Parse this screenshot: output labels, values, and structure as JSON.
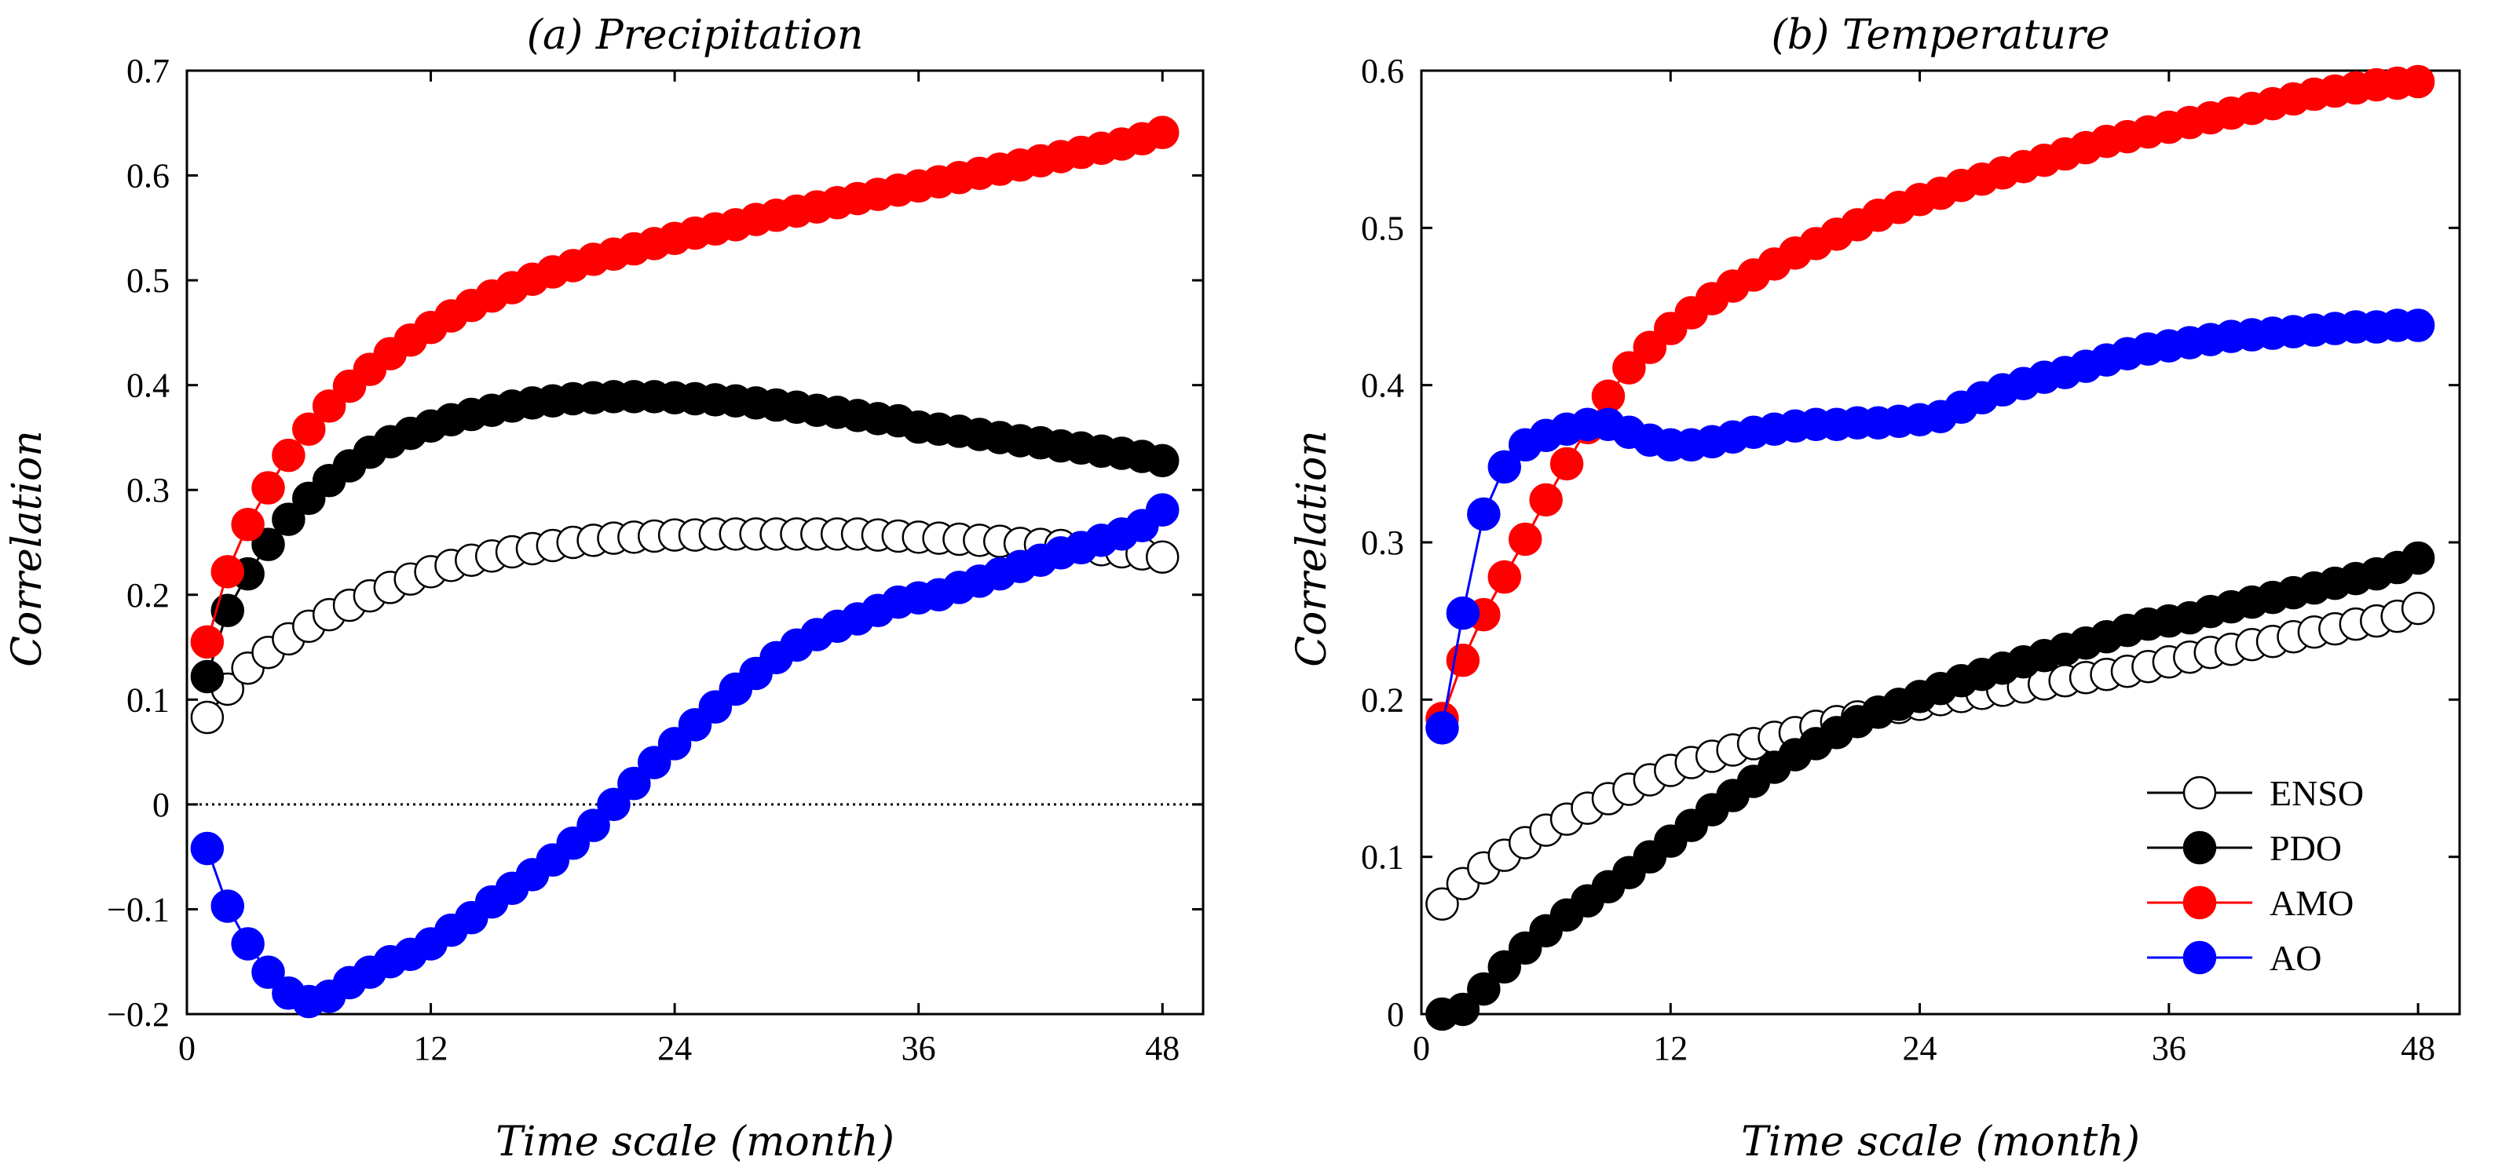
{
  "chart_data": [
    {
      "type": "line",
      "title": "(a) Precipitation",
      "xlabel": "Time scale (month)",
      "ylabel": "Correlation",
      "xlim": [
        0,
        50
      ],
      "ylim": [
        -0.2,
        0.7
      ],
      "xticks": [
        0,
        12,
        24,
        36,
        48
      ],
      "xtick_labels": [
        "0",
        "12",
        "24",
        "36",
        "48"
      ],
      "yticks": [
        -0.2,
        -0.1,
        0,
        0.1,
        0.2,
        0.3,
        0.4,
        0.5,
        0.6,
        0.7
      ],
      "ytick_labels": [
        "−0.2",
        "−0.1",
        "0",
        "0.1",
        "0.2",
        "0.3",
        "0.4",
        "0.5",
        "0.6",
        "0.7"
      ],
      "zero_line": true,
      "x": [
        1,
        2,
        3,
        4,
        5,
        6,
        7,
        8,
        9,
        10,
        11,
        12,
        13,
        14,
        15,
        16,
        17,
        18,
        19,
        20,
        21,
        22,
        23,
        24,
        25,
        26,
        27,
        28,
        29,
        30,
        31,
        32,
        33,
        34,
        35,
        36,
        37,
        38,
        39,
        40,
        41,
        42,
        43,
        44,
        45,
        46,
        47,
        48
      ],
      "series": [
        {
          "name": "ENSO",
          "values": [
            0.083,
            0.11,
            0.13,
            0.145,
            0.158,
            0.17,
            0.181,
            0.19,
            0.199,
            0.207,
            0.215,
            0.222,
            0.228,
            0.233,
            0.237,
            0.241,
            0.244,
            0.247,
            0.25,
            0.252,
            0.254,
            0.255,
            0.256,
            0.257,
            0.257,
            0.258,
            0.258,
            0.258,
            0.258,
            0.258,
            0.258,
            0.258,
            0.258,
            0.257,
            0.256,
            0.255,
            0.254,
            0.253,
            0.252,
            0.251,
            0.249,
            0.248,
            0.247,
            0.245,
            0.243,
            0.241,
            0.239,
            0.236
          ]
        },
        {
          "name": "PDO",
          "values": [
            0.122,
            0.185,
            0.22,
            0.248,
            0.272,
            0.292,
            0.309,
            0.323,
            0.336,
            0.346,
            0.354,
            0.361,
            0.367,
            0.372,
            0.376,
            0.38,
            0.383,
            0.385,
            0.387,
            0.388,
            0.389,
            0.389,
            0.389,
            0.388,
            0.387,
            0.386,
            0.385,
            0.383,
            0.381,
            0.379,
            0.376,
            0.374,
            0.371,
            0.368,
            0.366,
            0.36,
            0.358,
            0.356,
            0.353,
            0.35,
            0.347,
            0.345,
            0.342,
            0.34,
            0.337,
            0.335,
            0.332,
            0.328
          ]
        },
        {
          "name": "AMO",
          "values": [
            0.155,
            0.222,
            0.267,
            0.302,
            0.333,
            0.358,
            0.38,
            0.399,
            0.415,
            0.43,
            0.443,
            0.455,
            0.466,
            0.476,
            0.485,
            0.493,
            0.501,
            0.508,
            0.514,
            0.52,
            0.525,
            0.53,
            0.535,
            0.54,
            0.545,
            0.549,
            0.553,
            0.558,
            0.562,
            0.566,
            0.57,
            0.574,
            0.578,
            0.582,
            0.586,
            0.59,
            0.594,
            0.598,
            0.602,
            0.606,
            0.61,
            0.614,
            0.618,
            0.622,
            0.626,
            0.63,
            0.635,
            0.641
          ]
        },
        {
          "name": "AO",
          "values": [
            -0.042,
            -0.097,
            -0.133,
            -0.16,
            -0.18,
            -0.188,
            -0.183,
            -0.17,
            -0.16,
            -0.15,
            -0.143,
            -0.133,
            -0.12,
            -0.108,
            -0.093,
            -0.08,
            -0.067,
            -0.053,
            -0.037,
            -0.02,
            0.0,
            0.02,
            0.04,
            0.058,
            0.076,
            0.093,
            0.11,
            0.125,
            0.14,
            0.152,
            0.162,
            0.17,
            0.177,
            0.185,
            0.193,
            0.197,
            0.2,
            0.207,
            0.213,
            0.22,
            0.227,
            0.233,
            0.24,
            0.245,
            0.252,
            0.258,
            0.266,
            0.281
          ]
        }
      ]
    },
    {
      "type": "line",
      "title": "(b) Temperature",
      "xlabel": "Time scale (month)",
      "ylabel": "Correlation",
      "xlim": [
        0,
        50
      ],
      "ylim": [
        0,
        0.6
      ],
      "xticks": [
        0,
        12,
        24,
        36,
        48
      ],
      "xtick_labels": [
        "0",
        "12",
        "24",
        "36",
        "48"
      ],
      "yticks": [
        0,
        0.1,
        0.2,
        0.3,
        0.4,
        0.5,
        0.6
      ],
      "ytick_labels": [
        "0",
        "0.1",
        "0.2",
        "0.3",
        "0.4",
        "0.5",
        "0.6"
      ],
      "zero_line": false,
      "x": [
        1,
        2,
        3,
        4,
        5,
        6,
        7,
        8,
        9,
        10,
        11,
        12,
        13,
        14,
        15,
        16,
        17,
        18,
        19,
        20,
        21,
        22,
        23,
        24,
        25,
        26,
        27,
        28,
        29,
        30,
        31,
        32,
        33,
        34,
        35,
        36,
        37,
        38,
        39,
        40,
        41,
        42,
        43,
        44,
        45,
        46,
        47,
        48
      ],
      "series": [
        {
          "name": "ENSO",
          "values": [
            0.07,
            0.083,
            0.093,
            0.101,
            0.109,
            0.117,
            0.124,
            0.131,
            0.137,
            0.143,
            0.149,
            0.155,
            0.16,
            0.164,
            0.168,
            0.172,
            0.176,
            0.179,
            0.183,
            0.186,
            0.189,
            0.192,
            0.195,
            0.197,
            0.2,
            0.202,
            0.204,
            0.206,
            0.208,
            0.21,
            0.212,
            0.214,
            0.216,
            0.218,
            0.221,
            0.224,
            0.227,
            0.23,
            0.232,
            0.235,
            0.237,
            0.24,
            0.243,
            0.245,
            0.248,
            0.25,
            0.253,
            0.258
          ]
        },
        {
          "name": "PDO",
          "values": [
            0.0,
            0.003,
            0.016,
            0.03,
            0.042,
            0.053,
            0.063,
            0.072,
            0.081,
            0.09,
            0.1,
            0.11,
            0.12,
            0.13,
            0.139,
            0.148,
            0.157,
            0.165,
            0.172,
            0.179,
            0.186,
            0.192,
            0.197,
            0.202,
            0.207,
            0.212,
            0.216,
            0.22,
            0.224,
            0.228,
            0.232,
            0.236,
            0.24,
            0.244,
            0.248,
            0.25,
            0.252,
            0.256,
            0.259,
            0.262,
            0.265,
            0.268,
            0.271,
            0.274,
            0.277,
            0.28,
            0.284,
            0.29
          ]
        },
        {
          "name": "AMO",
          "values": [
            0.188,
            0.225,
            0.254,
            0.278,
            0.302,
            0.327,
            0.35,
            0.373,
            0.393,
            0.411,
            0.424,
            0.436,
            0.446,
            0.455,
            0.463,
            0.47,
            0.477,
            0.484,
            0.49,
            0.496,
            0.502,
            0.508,
            0.513,
            0.518,
            0.522,
            0.527,
            0.531,
            0.535,
            0.539,
            0.543,
            0.547,
            0.551,
            0.555,
            0.558,
            0.561,
            0.564,
            0.567,
            0.57,
            0.573,
            0.576,
            0.579,
            0.582,
            0.585,
            0.587,
            0.589,
            0.591,
            0.592,
            0.593
          ]
        },
        {
          "name": "AO",
          "values": [
            0.182,
            0.255,
            0.318,
            0.348,
            0.362,
            0.368,
            0.372,
            0.375,
            0.375,
            0.37,
            0.365,
            0.362,
            0.362,
            0.364,
            0.367,
            0.37,
            0.372,
            0.374,
            0.375,
            0.375,
            0.376,
            0.376,
            0.377,
            0.378,
            0.38,
            0.386,
            0.392,
            0.397,
            0.401,
            0.405,
            0.408,
            0.412,
            0.416,
            0.42,
            0.423,
            0.425,
            0.427,
            0.429,
            0.431,
            0.432,
            0.433,
            0.434,
            0.435,
            0.436,
            0.437,
            0.437,
            0.438,
            0.438
          ]
        }
      ],
      "legend": {
        "placement": "bottom-right",
        "entries": [
          "ENSO",
          "PDO",
          "AMO",
          "AO"
        ]
      }
    }
  ],
  "colors": {
    "ENSO": {
      "face": "#ffffff",
      "edge": "#000000",
      "line": "#000000"
    },
    "PDO": {
      "face": "#000000",
      "edge": "#000000",
      "line": "#000000"
    },
    "AMO": {
      "face": "#ff0000",
      "edge": "#ff0000",
      "line": "#ff0000"
    },
    "AO": {
      "face": "#0000ff",
      "edge": "#0000ff",
      "line": "#0000ff"
    },
    "axes": "#000000",
    "zero_line": "#000000"
  }
}
